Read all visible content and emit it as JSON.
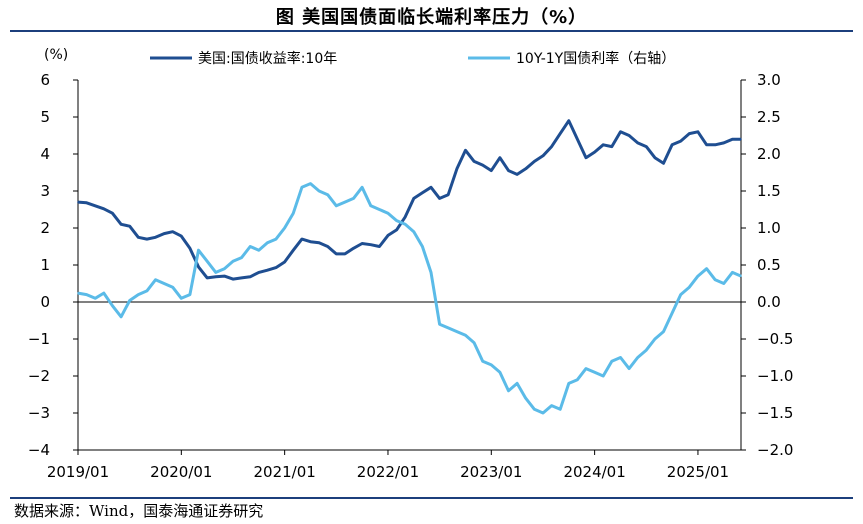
{
  "page": {
    "title": "图  美国国债面临长端利率压力（%）",
    "source": "数据来源：Wind，国泰海通证券研究"
  },
  "chart_data": {
    "type": "line",
    "title": "图  美国国债面临长端利率压力（%）",
    "y_left_unit": "(%)",
    "y_left_range": [
      -4,
      6
    ],
    "y_left_ticks": [
      "6",
      "5",
      "4",
      "3",
      "2",
      "1",
      "0",
      "−1",
      "−2",
      "−3",
      "−4"
    ],
    "y_right_range": [
      -2.0,
      3.0
    ],
    "y_right_ticks": [
      "3.0",
      "2.5",
      "2.0",
      "1.5",
      "1.0",
      "0.5",
      "0.0",
      "−0.5",
      "−1.0",
      "−1.5",
      "−2.0"
    ],
    "x_ticks": [
      "2019/01",
      "2020/01",
      "2021/01",
      "2022/01",
      "2023/01",
      "2024/01",
      "2025/01"
    ],
    "x_range": [
      "2019-01",
      "2025-06"
    ],
    "grid": false,
    "legend_position": "top",
    "series": [
      {
        "name": "美国:国债收益率:10年",
        "axis": "left",
        "color": "#1f4e91",
        "x": [
          "2019-01",
          "2019-02",
          "2019-03",
          "2019-04",
          "2019-05",
          "2019-06",
          "2019-07",
          "2019-08",
          "2019-09",
          "2019-10",
          "2019-11",
          "2019-12",
          "2020-01",
          "2020-02",
          "2020-03",
          "2020-04",
          "2020-05",
          "2020-06",
          "2020-07",
          "2020-08",
          "2020-09",
          "2020-10",
          "2020-11",
          "2020-12",
          "2021-01",
          "2021-02",
          "2021-03",
          "2021-04",
          "2021-05",
          "2021-06",
          "2021-07",
          "2021-08",
          "2021-09",
          "2021-10",
          "2021-11",
          "2021-12",
          "2022-01",
          "2022-02",
          "2022-03",
          "2022-04",
          "2022-05",
          "2022-06",
          "2022-07",
          "2022-08",
          "2022-09",
          "2022-10",
          "2022-11",
          "2022-12",
          "2023-01",
          "2023-02",
          "2023-03",
          "2023-04",
          "2023-05",
          "2023-06",
          "2023-07",
          "2023-08",
          "2023-09",
          "2023-10",
          "2023-11",
          "2023-12",
          "2024-01",
          "2024-02",
          "2024-03",
          "2024-04",
          "2024-05",
          "2024-06",
          "2024-07",
          "2024-08",
          "2024-09",
          "2024-10",
          "2024-11",
          "2024-12",
          "2025-01",
          "2025-02",
          "2025-03",
          "2025-04",
          "2025-05",
          "2025-06"
        ],
        "values": [
          2.7,
          2.68,
          2.6,
          2.52,
          2.4,
          2.1,
          2.05,
          1.75,
          1.7,
          1.75,
          1.85,
          1.9,
          1.78,
          1.45,
          0.95,
          0.65,
          0.68,
          0.7,
          0.62,
          0.65,
          0.68,
          0.8,
          0.86,
          0.93,
          1.08,
          1.4,
          1.7,
          1.63,
          1.6,
          1.5,
          1.3,
          1.3,
          1.45,
          1.58,
          1.55,
          1.5,
          1.8,
          1.95,
          2.3,
          2.8,
          2.95,
          3.1,
          2.8,
          2.9,
          3.6,
          4.1,
          3.8,
          3.7,
          3.55,
          3.9,
          3.55,
          3.45,
          3.6,
          3.8,
          3.95,
          4.2,
          4.55,
          4.9,
          4.4,
          3.9,
          4.05,
          4.25,
          4.2,
          4.6,
          4.5,
          4.3,
          4.2,
          3.9,
          3.75,
          4.25,
          4.35,
          4.55,
          4.6,
          4.25,
          4.25,
          4.3,
          4.4,
          4.4
        ]
      },
      {
        "name": "10Y-1Y国债利率（右轴）",
        "axis": "right",
        "color": "#5bbbe8",
        "x": [
          "2019-01",
          "2019-02",
          "2019-03",
          "2019-04",
          "2019-05",
          "2019-06",
          "2019-07",
          "2019-08",
          "2019-09",
          "2019-10",
          "2019-11",
          "2019-12",
          "2020-01",
          "2020-02",
          "2020-03",
          "2020-04",
          "2020-05",
          "2020-06",
          "2020-07",
          "2020-08",
          "2020-09",
          "2020-10",
          "2020-11",
          "2020-12",
          "2021-01",
          "2021-02",
          "2021-03",
          "2021-04",
          "2021-05",
          "2021-06",
          "2021-07",
          "2021-08",
          "2021-09",
          "2021-10",
          "2021-11",
          "2021-12",
          "2022-01",
          "2022-02",
          "2022-03",
          "2022-04",
          "2022-05",
          "2022-06",
          "2022-07",
          "2022-08",
          "2022-09",
          "2022-10",
          "2022-11",
          "2022-12",
          "2023-01",
          "2023-02",
          "2023-03",
          "2023-04",
          "2023-05",
          "2023-06",
          "2023-07",
          "2023-08",
          "2023-09",
          "2023-10",
          "2023-11",
          "2023-12",
          "2024-01",
          "2024-02",
          "2024-03",
          "2024-04",
          "2024-05",
          "2024-06",
          "2024-07",
          "2024-08",
          "2024-09",
          "2024-10",
          "2024-11",
          "2024-12",
          "2025-01",
          "2025-02",
          "2025-03",
          "2025-04",
          "2025-05",
          "2025-06"
        ],
        "values": [
          0.12,
          0.1,
          0.05,
          0.12,
          -0.05,
          -0.2,
          0.02,
          0.1,
          0.15,
          0.3,
          0.25,
          0.2,
          0.05,
          0.1,
          0.7,
          0.55,
          0.4,
          0.45,
          0.55,
          0.6,
          0.75,
          0.7,
          0.8,
          0.85,
          1.0,
          1.2,
          1.55,
          1.6,
          1.5,
          1.45,
          1.3,
          1.35,
          1.4,
          1.55,
          1.3,
          1.25,
          1.2,
          1.1,
          1.05,
          0.95,
          0.75,
          0.4,
          -0.3,
          -0.35,
          -0.4,
          -0.45,
          -0.55,
          -0.8,
          -0.85,
          -0.95,
          -1.2,
          -1.1,
          -1.3,
          -1.45,
          -1.5,
          -1.4,
          -1.45,
          -1.1,
          -1.05,
          -0.9,
          -0.95,
          -1.0,
          -0.8,
          -0.75,
          -0.9,
          -0.75,
          -0.65,
          -0.5,
          -0.4,
          -0.15,
          0.1,
          0.2,
          0.35,
          0.45,
          0.3,
          0.25,
          0.4,
          0.35
        ]
      }
    ]
  }
}
